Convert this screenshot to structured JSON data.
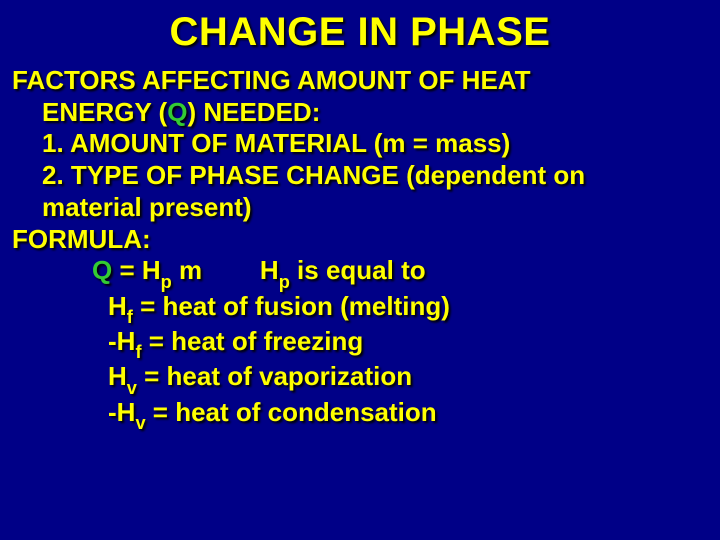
{
  "background_color": "#000087",
  "text_color": "#ffff00",
  "accent_color": "#33cc33",
  "shadow_color": "#000000",
  "title": "CHANGE IN PHASE",
  "title_fontsize": 40,
  "body_fontsize": 26,
  "font_family": "Arial",
  "lines": {
    "l1a": "FACTORS AFFECTING AMOUNT OF HEAT",
    "l1b_pre": "ENERGY (",
    "l1b_q": "Q",
    "l1b_post": ") NEEDED:",
    "l2": "1. AMOUNT OF MATERIAL (m = mass)",
    "l3a": "2. TYPE OF PHASE CHANGE (dependent on",
    "l3b": "material present)",
    "l4": "FORMULA:",
    "formula_q": "Q",
    "formula_eq1": " = H",
    "formula_psub": "p",
    "formula_m": " m",
    "formula_gap": "        ",
    "formula_h2": "H",
    "formula_rest": " is equal to",
    "hf_label": "H",
    "hf_sub": "f",
    "hf_txt": " = heat of fusion (melting)",
    "neg_hf_pre": "-H",
    "neg_hf_txt": " = heat of freezing",
    "hv_label": "H",
    "hv_sub": "v",
    "hv_txt": " = heat of vaporization",
    "neg_hv_pre": "-H",
    "neg_hv_txt": " = heat of condensation"
  }
}
